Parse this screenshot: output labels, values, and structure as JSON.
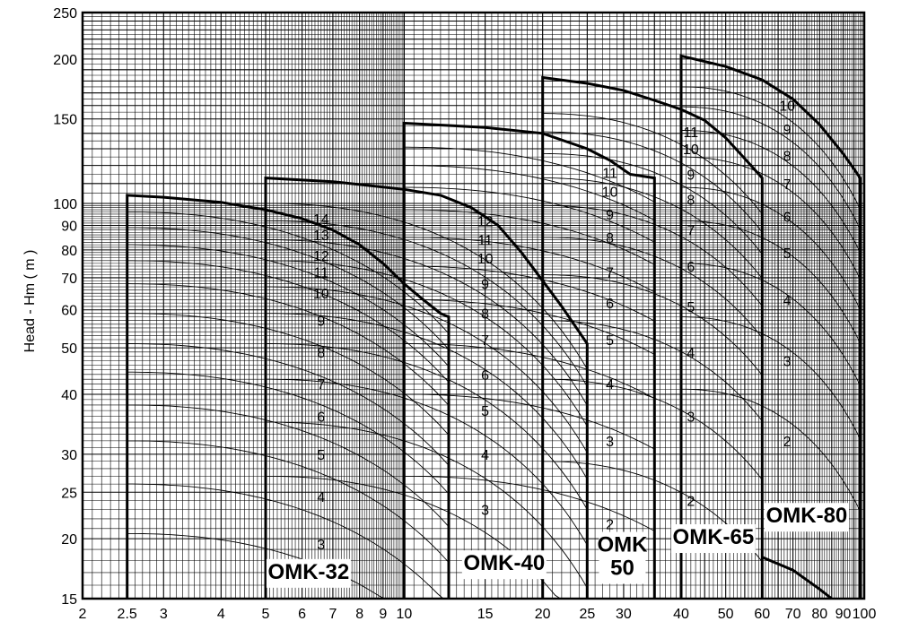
{
  "chart_data": {
    "type": "line",
    "title": "",
    "ylabel": "Head - Hm ( m )",
    "xlabel": "",
    "xscale": "log",
    "yscale": "log",
    "xlim": [
      2,
      100
    ],
    "ylim": [
      15,
      250
    ],
    "grid": true,
    "x_ticks": [
      {
        "v": 2,
        "label": "2"
      },
      {
        "v": 2.5,
        "label": "2.5"
      },
      {
        "v": 3,
        "label": "3"
      },
      {
        "v": 4,
        "label": "4"
      },
      {
        "v": 5,
        "label": "5"
      },
      {
        "v": 6,
        "label": "6"
      },
      {
        "v": 7,
        "label": "7"
      },
      {
        "v": 8,
        "label": "8"
      },
      {
        "v": 9,
        "label": "9"
      },
      {
        "v": 10,
        "label": "10"
      },
      {
        "v": 15,
        "label": "15"
      },
      {
        "v": 20,
        "label": "20"
      },
      {
        "v": 25,
        "label": "25"
      },
      {
        "v": 30,
        "label": "30"
      },
      {
        "v": 40,
        "label": "40"
      },
      {
        "v": 50,
        "label": "50"
      },
      {
        "v": 60,
        "label": "60"
      },
      {
        "v": 70,
        "label": "70"
      },
      {
        "v": 80,
        "label": "80"
      },
      {
        "v": 90,
        "label": "90"
      },
      {
        "v": 100,
        "label": "100"
      }
    ],
    "y_ticks": [
      {
        "v": 15,
        "label": "15"
      },
      {
        "v": 20,
        "label": "20"
      },
      {
        "v": 25,
        "label": "25"
      },
      {
        "v": 30,
        "label": "30"
      },
      {
        "v": 40,
        "label": "40"
      },
      {
        "v": 50,
        "label": "50"
      },
      {
        "v": 60,
        "label": "60"
      },
      {
        "v": 70,
        "label": "70"
      },
      {
        "v": 80,
        "label": "80"
      },
      {
        "v": 90,
        "label": "90"
      },
      {
        "v": 100,
        "label": "100"
      },
      {
        "v": 150,
        "label": "150"
      },
      {
        "v": 200,
        "label": "200"
      },
      {
        "v": 250,
        "label": "250"
      }
    ],
    "models": [
      {
        "name": "OMK-32",
        "name_lines": [
          "OMK-32"
        ],
        "label_pos": [
          6.2,
          16.5
        ],
        "q_min": 2.5,
        "q_max": 12.5,
        "h_shut_top": 104,
        "envelope": [
          [
            2.5,
            104
          ],
          [
            3,
            103
          ],
          [
            4,
            100.5
          ],
          [
            5,
            97
          ],
          [
            6,
            93
          ],
          [
            7,
            88
          ],
          [
            8,
            82
          ],
          [
            9,
            75
          ],
          [
            10,
            68
          ],
          [
            11,
            63
          ],
          [
            12,
            59
          ],
          [
            12.5,
            58
          ]
        ],
        "stages": [
          {
            "label": "14",
            "h_shut": 96,
            "lx": 6.6,
            "ly": 93
          },
          {
            "label": "13",
            "h_shut": 89,
            "lx": 6.6,
            "ly": 86
          },
          {
            "label": "12",
            "h_shut": 82,
            "lx": 6.6,
            "ly": 78
          },
          {
            "label": "11",
            "h_shut": 76,
            "lx": 6.6,
            "ly": 72
          },
          {
            "label": "10",
            "h_shut": 68,
            "lx": 6.6,
            "ly": 65
          },
          {
            "label": "9",
            "h_shut": 59,
            "lx": 6.6,
            "ly": 57
          },
          {
            "label": "8",
            "h_shut": 51,
            "lx": 6.6,
            "ly": 49
          },
          {
            "label": "7",
            "h_shut": 44.5,
            "lx": 6.6,
            "ly": 42
          },
          {
            "label": "6",
            "h_shut": 38,
            "lx": 6.6,
            "ly": 36
          },
          {
            "label": "5",
            "h_shut": 32,
            "lx": 6.6,
            "ly": 30
          },
          {
            "label": "4",
            "h_shut": 26,
            "lx": 6.6,
            "ly": 24.5
          },
          {
            "label": "3",
            "h_shut": 20.5,
            "lx": 6.6,
            "ly": 19.5
          }
        ]
      },
      {
        "name": "OMK-40",
        "name_lines": [
          "OMK-40"
        ],
        "label_pos": [
          16.5,
          17.2
        ],
        "q_min": 5,
        "q_max": 25,
        "h_shut_top": 113,
        "envelope": [
          [
            5,
            113
          ],
          [
            7,
            111
          ],
          [
            10,
            107
          ],
          [
            12,
            104
          ],
          [
            14,
            98
          ],
          [
            16,
            90
          ],
          [
            18,
            79
          ],
          [
            20,
            69
          ],
          [
            22,
            61
          ],
          [
            24,
            54
          ],
          [
            25,
            51
          ]
        ],
        "stages": [
          {
            "label": "12",
            "h_shut": 100,
            "lx": 15,
            "ly": 92
          },
          {
            "label": "11",
            "h_shut": 92,
            "lx": 15,
            "ly": 84
          },
          {
            "label": "10",
            "h_shut": 84,
            "lx": 15,
            "ly": 77
          },
          {
            "label": "9",
            "h_shut": 76,
            "lx": 15,
            "ly": 68
          },
          {
            "label": "8",
            "h_shut": 67,
            "lx": 15,
            "ly": 59
          },
          {
            "label": "7",
            "h_shut": 59,
            "lx": 15,
            "ly": 52
          },
          {
            "label": "6",
            "h_shut": 51,
            "lx": 15,
            "ly": 44
          },
          {
            "label": "5",
            "h_shut": 43,
            "lx": 15,
            "ly": 37
          },
          {
            "label": "4",
            "h_shut": 35,
            "lx": 15,
            "ly": 30
          },
          {
            "label": "3",
            "h_shut": 27,
            "lx": 15,
            "ly": 23
          }
        ]
      },
      {
        "name": "OMK 50",
        "name_lines": [
          "OMK",
          "50"
        ],
        "label_pos": [
          29.8,
          18.8
        ],
        "q_min": 10,
        "q_max": 35,
        "h_shut_top": 147,
        "envelope": [
          [
            10,
            147
          ],
          [
            15,
            144
          ],
          [
            20,
            140
          ],
          [
            25,
            130
          ],
          [
            28,
            123
          ],
          [
            31,
            115
          ],
          [
            35,
            113
          ]
        ],
        "stages": [
          {
            "label": "11",
            "h_shut": 131,
            "lx": 28,
            "ly": 116
          },
          {
            "label": "10",
            "h_shut": 120,
            "lx": 28,
            "ly": 106
          },
          {
            "label": "9",
            "h_shut": 108,
            "lx": 28,
            "ly": 95
          },
          {
            "label": "8",
            "h_shut": 97,
            "lx": 28,
            "ly": 85
          },
          {
            "label": "7",
            "h_shut": 85,
            "lx": 28,
            "ly": 72
          },
          {
            "label": "6",
            "h_shut": 74,
            "lx": 28,
            "ly": 62
          },
          {
            "label": "5",
            "h_shut": 63,
            "lx": 28,
            "ly": 52
          },
          {
            "label": "4",
            "h_shut": 51,
            "lx": 28,
            "ly": 42
          },
          {
            "label": "3",
            "h_shut": 40,
            "lx": 28,
            "ly": 32
          },
          {
            "label": "2",
            "h_shut": 27,
            "lx": 28,
            "ly": 21.5
          }
        ]
      },
      {
        "name": "OMK-65",
        "name_lines": [
          "OMK-65"
        ],
        "label_pos": [
          47,
          19.5
        ],
        "q_min": 20,
        "q_max": 60,
        "h_shut_top": 183,
        "envelope": [
          [
            20,
            183
          ],
          [
            25,
            178
          ],
          [
            30,
            172
          ],
          [
            35,
            164
          ],
          [
            40,
            157
          ],
          [
            45,
            149
          ],
          [
            50,
            137
          ],
          [
            55,
            124
          ],
          [
            60,
            113
          ]
        ],
        "stages": [
          {
            "label": "11",
            "h_shut": 154,
            "lx": 42,
            "ly": 141
          },
          {
            "label": "10",
            "h_shut": 141,
            "lx": 42,
            "ly": 130
          },
          {
            "label": "9",
            "h_shut": 127,
            "lx": 42,
            "ly": 115
          },
          {
            "label": "8",
            "h_shut": 113,
            "lx": 42,
            "ly": 102
          },
          {
            "label": "7",
            "h_shut": 99,
            "lx": 42,
            "ly": 88
          },
          {
            "label": "6",
            "h_shut": 85,
            "lx": 42,
            "ly": 74
          },
          {
            "label": "5",
            "h_shut": 71,
            "lx": 42,
            "ly": 61
          },
          {
            "label": "4",
            "h_shut": 57,
            "lx": 42,
            "ly": 49
          },
          {
            "label": "3",
            "h_shut": 43,
            "lx": 42,
            "ly": 36
          },
          {
            "label": "2",
            "h_shut": 29,
            "lx": 42,
            "ly": 24
          }
        ]
      },
      {
        "name": "OMK-80",
        "name_lines": [
          "OMK-80"
        ],
        "label_pos": [
          75,
          21.6
        ],
        "q_min": 40,
        "q_max": 98,
        "h_shut_top": 203,
        "envelope": [
          [
            40,
            203
          ],
          [
            50,
            193
          ],
          [
            60,
            181
          ],
          [
            70,
            165
          ],
          [
            80,
            146
          ],
          [
            90,
            127
          ],
          [
            95,
            118
          ],
          [
            98,
            113
          ]
        ],
        "extra": [
          [
            60,
            18.3
          ],
          [
            70,
            17.2
          ],
          [
            80,
            15.7
          ],
          [
            85,
            15
          ]
        ],
        "stages": [
          {
            "label": "10",
            "h_shut": 175,
            "lx": 68,
            "ly": 160
          },
          {
            "label": "9",
            "h_shut": 159,
            "lx": 68,
            "ly": 143
          },
          {
            "label": "8",
            "h_shut": 142,
            "lx": 68,
            "ly": 126
          },
          {
            "label": "7",
            "h_shut": 125,
            "lx": 68,
            "ly": 110
          },
          {
            "label": "6",
            "h_shut": 108,
            "lx": 68,
            "ly": 94
          },
          {
            "label": "5",
            "h_shut": 92,
            "lx": 68,
            "ly": 79
          },
          {
            "label": "4",
            "h_shut": 75,
            "lx": 68,
            "ly": 63
          },
          {
            "label": "3",
            "h_shut": 58,
            "lx": 68,
            "ly": 47
          },
          {
            "label": "2",
            "h_shut": 41,
            "lx": 68,
            "ly": 32
          }
        ]
      }
    ]
  }
}
